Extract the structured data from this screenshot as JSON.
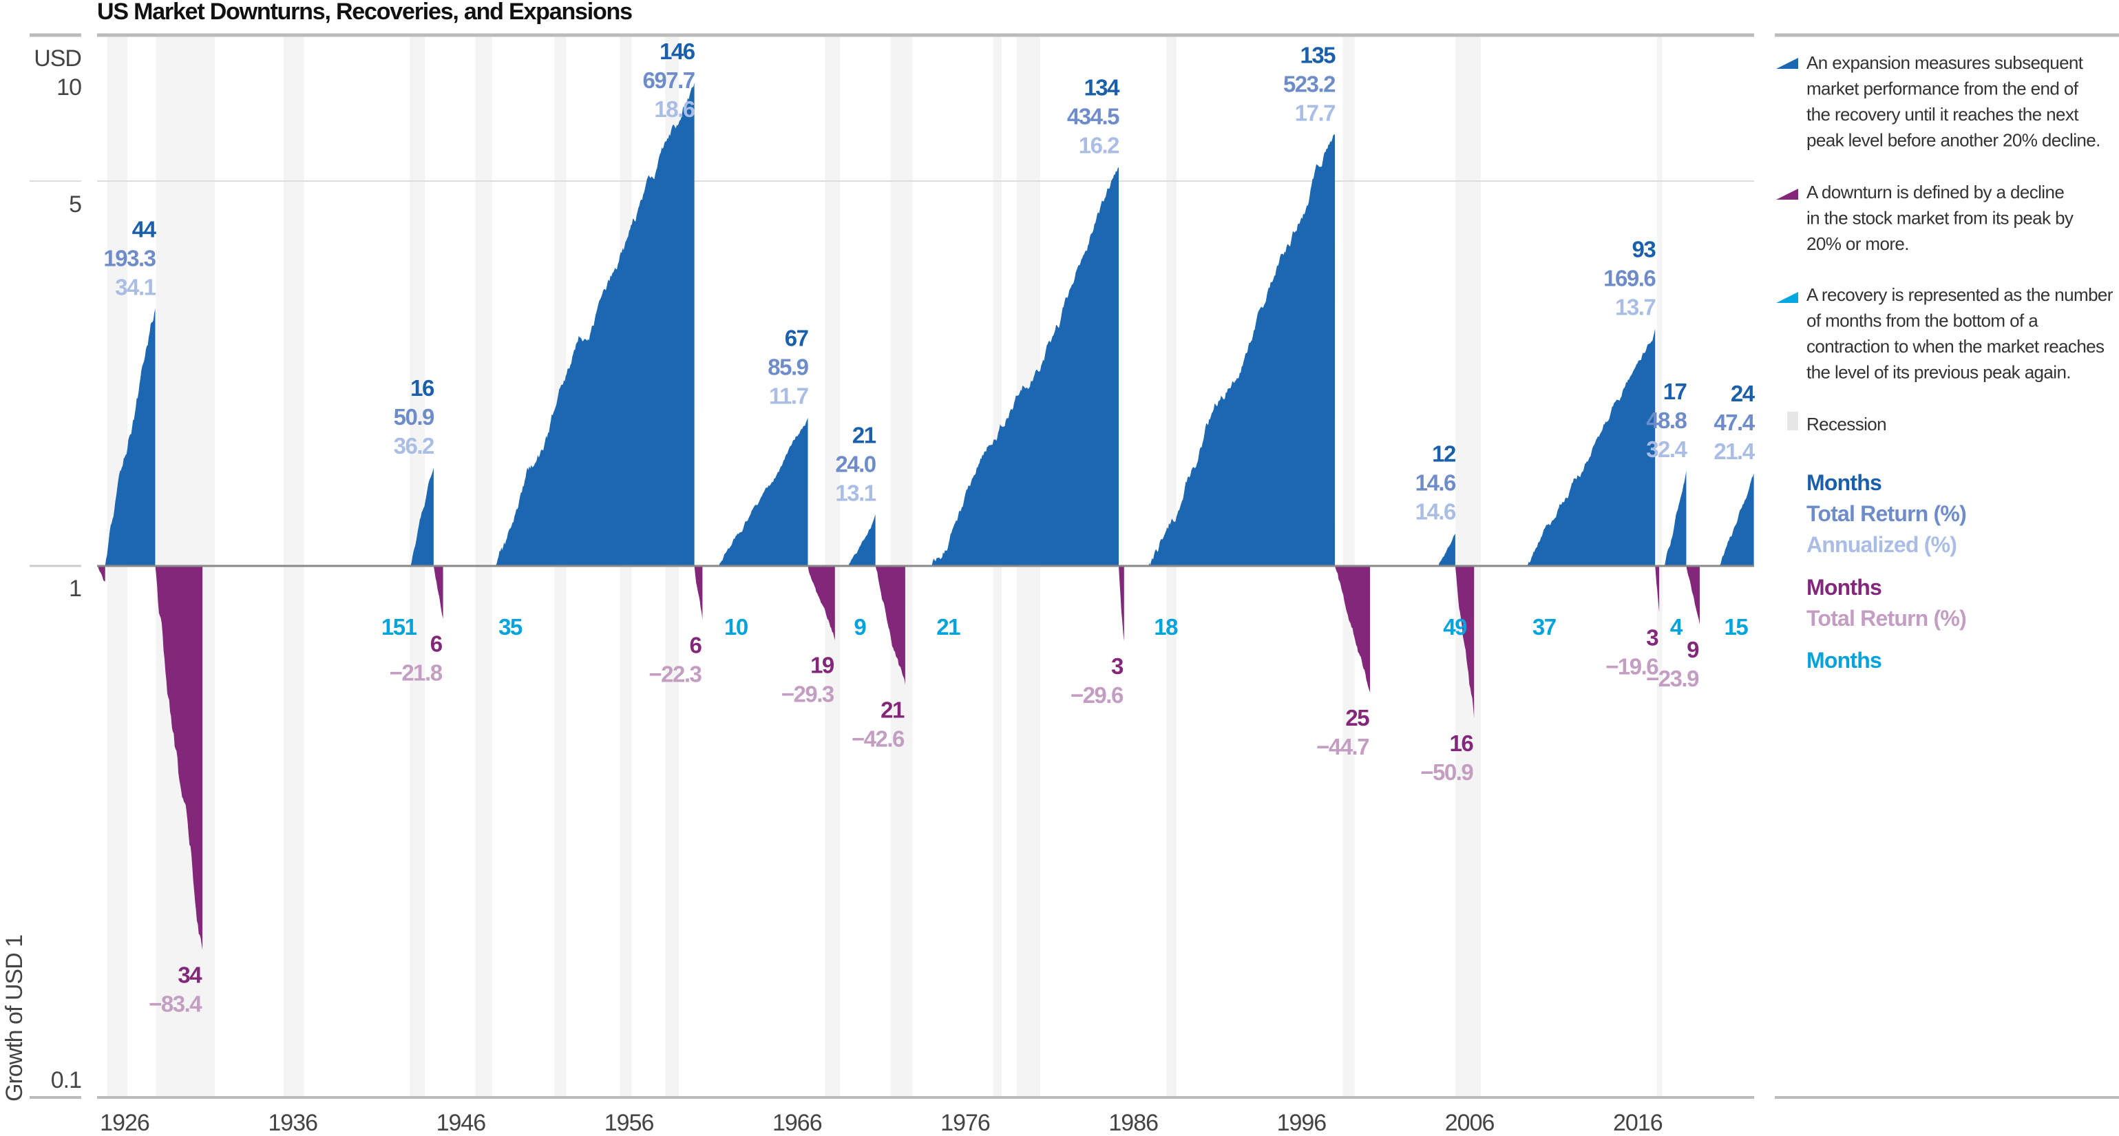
{
  "title": "US Market Downturns, Recoveries, and Expansions",
  "chart_data": {
    "type": "area",
    "title": "US Market Downturns, Recoveries, and Expansions",
    "ylabel": "Growth of USD 1",
    "yunit": "USD",
    "yscale": "log",
    "yticks": [
      "10",
      "5",
      "1",
      "0.1"
    ],
    "ytick_values": [
      10,
      5,
      1,
      0.1
    ],
    "xticks": [
      "1926",
      "1936",
      "1946",
      "1956",
      "1966",
      "1976",
      "1986",
      "1996",
      "2006",
      "2016"
    ],
    "xlim": [
      1926,
      2024.5
    ],
    "colors": {
      "expansion": "#1b67b2",
      "downturn": "#83277a",
      "recovery": "#00a8df",
      "recession": "#f4f4f4",
      "exp_months": "#1a5fab",
      "exp_total": "#6e8cc9",
      "exp_annual": "#aabde4",
      "down_months": "#83277a",
      "down_total": "#c39ec2",
      "rec_months": "#00a3dc"
    },
    "recessions": [
      [
        1926.6,
        1927.8
      ],
      [
        1929.5,
        1933.0
      ],
      [
        1937.1,
        1938.3
      ],
      [
        1944.6,
        1945.5
      ],
      [
        1948.5,
        1949.5
      ],
      [
        1953.2,
        1953.9
      ],
      [
        1957.1,
        1957.8
      ],
      [
        1959.8,
        1960.6
      ],
      [
        1969.3,
        1970.2
      ],
      [
        1973.2,
        1974.5
      ],
      [
        1979.3,
        1979.8
      ],
      [
        1980.7,
        1982.1
      ],
      [
        1989.6,
        1990.2
      ],
      [
        2000.1,
        2000.8
      ],
      [
        2006.8,
        2008.3
      ],
      [
        2018.8,
        2019.1
      ]
    ],
    "episodes": [
      {
        "type": "downturn",
        "start": 1926.0,
        "end": 1926.48,
        "months": "",
        "total_return": "",
        "level": 0.93
      },
      {
        "type": "expansion",
        "start": 1926.48,
        "end": 1929.46,
        "months": "44",
        "total_return": "193.3",
        "annualized": "34.1",
        "level": 2.933
      },
      {
        "type": "downturn",
        "start": 1929.46,
        "end": 1932.27,
        "months": "34",
        "total_return": "−83.4",
        "level": 0.166
      },
      {
        "type": "recovery",
        "start": 1932.27,
        "end": 1944.65,
        "months": "151",
        "level": 1
      },
      {
        "type": "expansion",
        "start": 1944.65,
        "end": 1946.02,
        "months": "16",
        "total_return": "50.9",
        "annualized": "36.2",
        "level": 1.509
      },
      {
        "type": "downturn",
        "start": 1946.02,
        "end": 1946.58,
        "months": "6",
        "total_return": "−21.8",
        "level": 0.782
      },
      {
        "type": "recovery",
        "start": 1946.58,
        "end": 1949.55,
        "months": "35",
        "level": 1
      },
      {
        "type": "expansion",
        "start": 1949.55,
        "end": 1961.53,
        "months": "146",
        "total_return": "697.7",
        "annualized": "18.6",
        "level": 7.977
      },
      {
        "type": "downturn",
        "start": 1961.53,
        "end": 1962.01,
        "months": "6",
        "total_return": "−22.3",
        "level": 0.777
      },
      {
        "type": "recovery",
        "start": 1962.01,
        "end": 1962.98,
        "months": "10",
        "level": 1
      },
      {
        "type": "expansion",
        "start": 1962.98,
        "end": 1968.28,
        "months": "67",
        "total_return": "85.9",
        "annualized": "11.7",
        "level": 1.859
      },
      {
        "type": "downturn",
        "start": 1968.28,
        "end": 1969.89,
        "months": "19",
        "total_return": "−29.3",
        "level": 0.707
      },
      {
        "type": "recovery",
        "start": 1969.89,
        "end": 1970.69,
        "months": "9",
        "level": 1
      },
      {
        "type": "expansion",
        "start": 1970.69,
        "end": 1972.3,
        "months": "21",
        "total_return": "24.0",
        "annualized": "13.1",
        "level": 1.24
      },
      {
        "type": "downturn",
        "start": 1972.3,
        "end": 1974.07,
        "months": "21",
        "total_return": "−42.6",
        "level": 0.574
      },
      {
        "type": "recovery",
        "start": 1974.07,
        "end": 1975.6,
        "months": "21",
        "level": 1
      },
      {
        "type": "expansion",
        "start": 1975.6,
        "end": 1986.77,
        "months": "134",
        "total_return": "434.5",
        "annualized": "16.2",
        "level": 5.345
      },
      {
        "type": "downturn",
        "start": 1986.77,
        "end": 1987.09,
        "months": "3",
        "total_return": "−29.6",
        "level": 0.704
      },
      {
        "type": "recovery",
        "start": 1987.09,
        "end": 1988.54,
        "months": "18",
        "level": 1
      },
      {
        "type": "expansion",
        "start": 1988.54,
        "end": 1999.63,
        "months": "135",
        "total_return": "523.2",
        "annualized": "17.7",
        "level": 6.232
      },
      {
        "type": "downturn",
        "start": 1999.63,
        "end": 2001.72,
        "months": "25",
        "total_return": "−44.7",
        "level": 0.553
      },
      {
        "type": "recovery",
        "start": 2001.72,
        "end": 2005.74,
        "months": "49",
        "level": 1
      },
      {
        "type": "expansion",
        "start": 2005.74,
        "end": 2006.79,
        "months": "12",
        "total_return": "14.6",
        "annualized": "14.6",
        "level": 1.146
      },
      {
        "type": "downturn",
        "start": 2006.79,
        "end": 2007.91,
        "months": "16",
        "total_return": "−50.9",
        "level": 0.491
      },
      {
        "type": "recovery",
        "start": 2007.91,
        "end": 2011.05,
        "months": "37",
        "level": 1
      },
      {
        "type": "expansion",
        "start": 2011.05,
        "end": 2018.68,
        "months": "93",
        "total_return": "169.6",
        "annualized": "13.7",
        "level": 2.696
      },
      {
        "type": "downturn",
        "start": 2018.68,
        "end": 2018.92,
        "months": "3",
        "total_return": "−19.6",
        "level": 0.804
      },
      {
        "type": "recovery",
        "start": 2018.92,
        "end": 2019.24,
        "months": "4",
        "level": 1
      },
      {
        "type": "expansion",
        "start": 2019.24,
        "end": 2020.53,
        "months": "17",
        "total_return": "48.8",
        "annualized": "32.4",
        "level": 1.488
      },
      {
        "type": "downturn",
        "start": 2020.53,
        "end": 2021.33,
        "months": "9",
        "total_return": "−23.9",
        "level": 0.761
      },
      {
        "type": "recovery",
        "start": 2021.33,
        "end": 2022.46,
        "months": "15",
        "level": 1
      },
      {
        "type": "expansion",
        "start": 2022.46,
        "end": 2024.55,
        "months": "24",
        "total_return": "47.4",
        "annualized": "21.4",
        "level": 1.474
      }
    ]
  },
  "legend": {
    "expansion_lines": [
      "An expansion measures subsequent",
      "market performance from the end of",
      "the recovery until it reaches the next",
      "peak level before another 20% decline."
    ],
    "downturn_lines": [
      "A downturn is defined by a decline",
      "in the stock market from its peak by",
      "20% or more."
    ],
    "recovery_lines": [
      "A recovery is represented as the number",
      "of months from the bottom of a",
      "contraction to when the market reaches",
      "the level of its previous peak again."
    ],
    "recession": "Recession",
    "key": {
      "exp_months": "Months",
      "exp_total": "Total Return (%)",
      "exp_annual": "Annualized (%)",
      "down_months": "Months",
      "down_total": "Total Return (%)",
      "rec_months": "Months"
    }
  }
}
